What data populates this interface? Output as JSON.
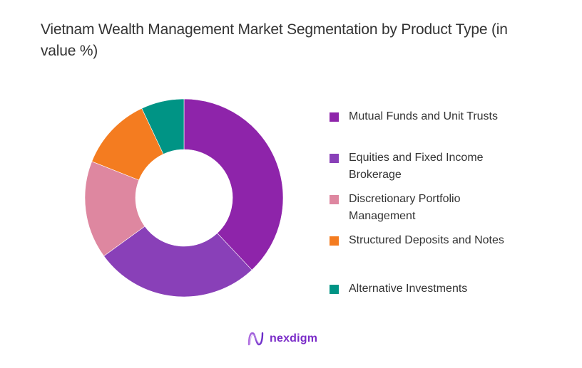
{
  "title": "Vietnam Wealth Management Market Segmentation by Product Type (in value %)",
  "chart_data": {
    "type": "pie",
    "subtype": "donut",
    "title": "Vietnam Wealth Management Market Segmentation by Product Type (in value %)",
    "categories": [
      "Mutual Funds and Unit Trusts",
      "Equities and Fixed Income Brokerage",
      "Discretionary Portfolio Management",
      "Structured Deposits and Notes",
      "Alternative Investments"
    ],
    "values": [
      38,
      27,
      16,
      12,
      7
    ],
    "colors": [
      "#8E24AA",
      "#8940B8",
      "#DE87A0",
      "#F47C20",
      "#009485"
    ],
    "legend_position": "right",
    "start_angle": "12 o'clock, clockwise"
  },
  "legend": [
    {
      "label": "Mutual Funds and Unit Trusts",
      "color": "#8E24AA"
    },
    {
      "label": "Equities and Fixed Income Brokerage",
      "color": "#8940B8"
    },
    {
      "label": "Discretionary Portfolio Management",
      "color": "#DE87A0"
    },
    {
      "label": "Structured Deposits and Notes",
      "color": "#F47C20"
    },
    {
      "label": "Alternative Investments",
      "color": "#009485"
    }
  ],
  "logo": {
    "text": "nexdigm",
    "icon": "nexdigm-wave-icon"
  }
}
